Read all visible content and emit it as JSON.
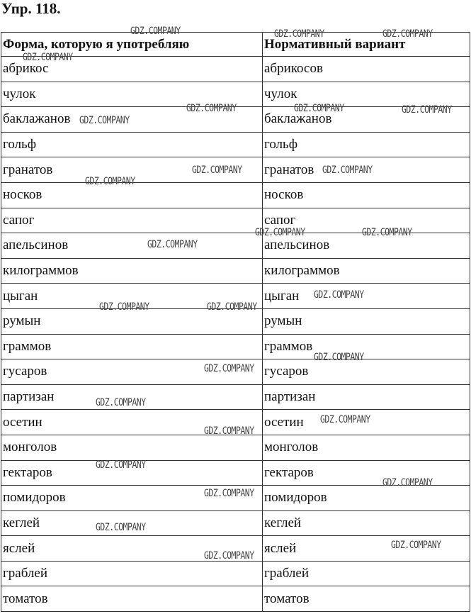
{
  "title": "Упр. 118.",
  "table": {
    "headers": [
      "Форма, которую я употребляю",
      "Нормативный вариант"
    ],
    "rows": [
      [
        "абрикос",
        "абрикосов"
      ],
      [
        "чулок",
        "чулок"
      ],
      [
        "баклажанов",
        "баклажанов"
      ],
      [
        "гольф",
        "гольф"
      ],
      [
        "гранатов",
        "гранатов"
      ],
      [
        "носков",
        "носков"
      ],
      [
        "сапог",
        "сапог"
      ],
      [
        "апельсинов",
        "апельсинов"
      ],
      [
        "килограммов",
        "килограммов"
      ],
      [
        "цыган",
        "цыган"
      ],
      [
        "румын",
        "румын"
      ],
      [
        "граммов",
        "граммов"
      ],
      [
        "гусаров",
        "гусаров"
      ],
      [
        "партизан",
        "партизан"
      ],
      [
        "осетин",
        "осетин"
      ],
      [
        "монголов",
        "монголов"
      ],
      [
        "гектаров",
        "гектаров"
      ],
      [
        "помидоров",
        "помидоров"
      ],
      [
        "кеглей",
        "кеглей"
      ],
      [
        "яслей",
        "яслей"
      ],
      [
        "граблей",
        "граблей"
      ],
      [
        "томатов",
        "томатов"
      ]
    ]
  },
  "watermark": "GDZ.COMPANY"
}
